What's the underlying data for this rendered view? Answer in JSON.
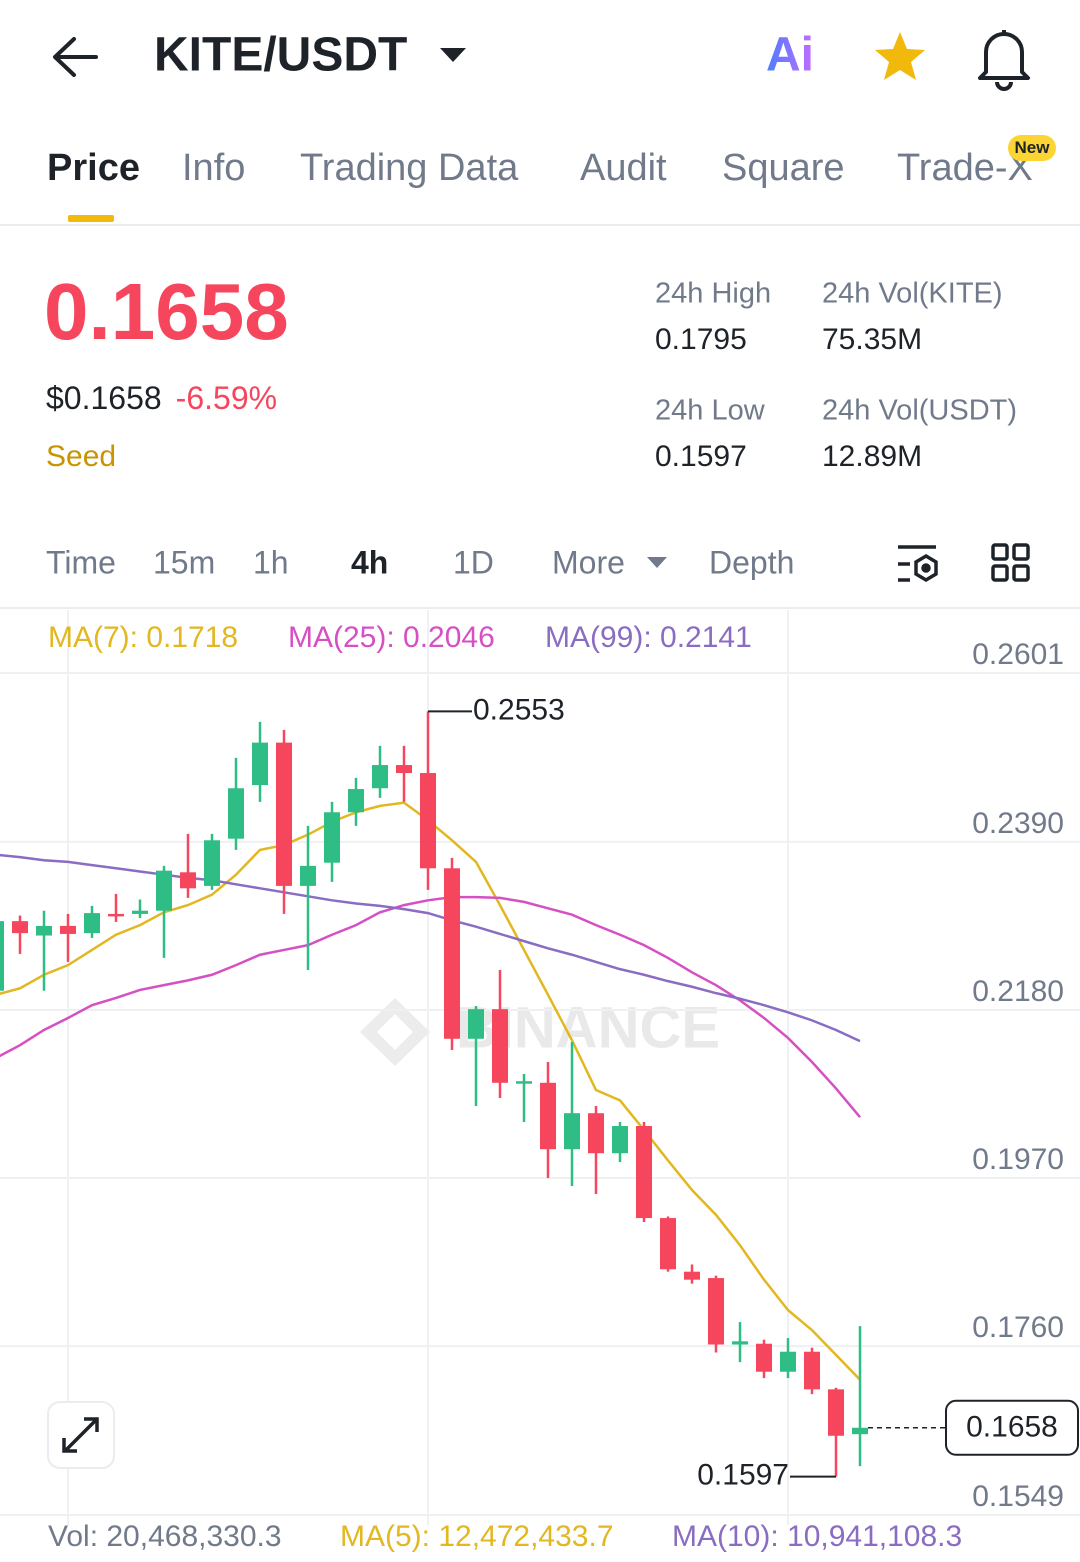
{
  "header": {
    "title": "KITE/USDT",
    "ai_label": "Ai"
  },
  "tabs": {
    "items": [
      "Price",
      "Info",
      "Trading Data",
      "Audit",
      "Square",
      "Trade-X"
    ],
    "badge": "New"
  },
  "ticker": {
    "price": "0.1658",
    "usd_price": "$0.1658",
    "change": "-6.59%",
    "tag": "Seed",
    "stats": [
      {
        "label": "24h High",
        "value": "0.1795"
      },
      {
        "label": "24h Vol(KITE)",
        "value": "75.35M"
      },
      {
        "label": "24h Low",
        "value": "0.1597"
      },
      {
        "label": "24h Vol(USDT)",
        "value": "12.89M"
      }
    ]
  },
  "intervals": [
    "Time",
    "15m",
    "1h",
    "4h",
    "1D",
    "More",
    "Depth"
  ],
  "chart_data": {
    "type": "candlestick",
    "watermark": "BINANCE",
    "up_color": "#2ebd85",
    "down_color": "#f6465d",
    "grid": true,
    "ylim": [
      0.1549,
      0.2601
    ],
    "yticks": [
      0.2601,
      {
        "value": 0.239,
        "label": "0.2390"
      },
      {
        "value": 0.218,
        "label": "0.2180"
      },
      {
        "value": 0.197,
        "label": "0.1970"
      },
      {
        "value": 0.176,
        "label": "0.1760"
      },
      0.1549
    ],
    "high_marker": 0.2553,
    "low_marker": 0.1597,
    "last_price": 0.1658,
    "candles": [
      {
        "open": 0.2204,
        "high": 0.23,
        "low": 0.219,
        "close": 0.2291
      },
      {
        "open": 0.2291,
        "high": 0.2298,
        "low": 0.225,
        "close": 0.2276
      },
      {
        "open": 0.2273,
        "high": 0.2304,
        "low": 0.2204,
        "close": 0.2285
      },
      {
        "open": 0.2285,
        "high": 0.23,
        "low": 0.224,
        "close": 0.2275
      },
      {
        "open": 0.2276,
        "high": 0.231,
        "low": 0.227,
        "close": 0.2301
      },
      {
        "open": 0.23,
        "high": 0.2325,
        "low": 0.229,
        "close": 0.2298
      },
      {
        "open": 0.23,
        "high": 0.2318,
        "low": 0.2295,
        "close": 0.2304
      },
      {
        "open": 0.2304,
        "high": 0.236,
        "low": 0.2245,
        "close": 0.2354
      },
      {
        "open": 0.2352,
        "high": 0.24,
        "low": 0.232,
        "close": 0.2332
      },
      {
        "open": 0.2335,
        "high": 0.24,
        "low": 0.233,
        "close": 0.2392
      },
      {
        "open": 0.2394,
        "high": 0.2495,
        "low": 0.238,
        "close": 0.2457
      },
      {
        "open": 0.2461,
        "high": 0.254,
        "low": 0.244,
        "close": 0.2514
      },
      {
        "open": 0.2514,
        "high": 0.253,
        "low": 0.23,
        "close": 0.2335
      },
      {
        "open": 0.2335,
        "high": 0.241,
        "low": 0.223,
        "close": 0.236
      },
      {
        "open": 0.2364,
        "high": 0.244,
        "low": 0.234,
        "close": 0.2427
      },
      {
        "open": 0.2427,
        "high": 0.247,
        "low": 0.241,
        "close": 0.2456
      },
      {
        "open": 0.2457,
        "high": 0.251,
        "low": 0.2445,
        "close": 0.2486
      },
      {
        "open": 0.2486,
        "high": 0.251,
        "low": 0.244,
        "close": 0.2476
      },
      {
        "open": 0.2476,
        "high": 0.2553,
        "low": 0.233,
        "close": 0.2357
      },
      {
        "open": 0.2357,
        "high": 0.237,
        "low": 0.213,
        "close": 0.2144
      },
      {
        "open": 0.2144,
        "high": 0.2185,
        "low": 0.206,
        "close": 0.2181
      },
      {
        "open": 0.2181,
        "high": 0.223,
        "low": 0.207,
        "close": 0.2089
      },
      {
        "open": 0.2089,
        "high": 0.21,
        "low": 0.204,
        "close": 0.2091
      },
      {
        "open": 0.2089,
        "high": 0.2115,
        "low": 0.197,
        "close": 0.2006
      },
      {
        "open": 0.2006,
        "high": 0.214,
        "low": 0.196,
        "close": 0.2051
      },
      {
        "open": 0.2051,
        "high": 0.206,
        "low": 0.195,
        "close": 0.2001
      },
      {
        "open": 0.2001,
        "high": 0.204,
        "low": 0.199,
        "close": 0.2035
      },
      {
        "open": 0.2035,
        "high": 0.204,
        "low": 0.1915,
        "close": 0.192
      },
      {
        "open": 0.192,
        "high": 0.1922,
        "low": 0.1853,
        "close": 0.1856
      },
      {
        "open": 0.1853,
        "high": 0.1862,
        "low": 0.1838,
        "close": 0.1843
      },
      {
        "open": 0.1845,
        "high": 0.1848,
        "low": 0.1752,
        "close": 0.1762
      },
      {
        "open": 0.1762,
        "high": 0.179,
        "low": 0.174,
        "close": 0.1766
      },
      {
        "open": 0.1763,
        "high": 0.1768,
        "low": 0.172,
        "close": 0.1728
      },
      {
        "open": 0.1728,
        "high": 0.177,
        "low": 0.172,
        "close": 0.1753
      },
      {
        "open": 0.1753,
        "high": 0.1758,
        "low": 0.17,
        "close": 0.1706
      },
      {
        "open": 0.1706,
        "high": 0.1708,
        "low": 0.1597,
        "close": 0.1648
      },
      {
        "open": 0.165,
        "high": 0.1785,
        "low": 0.161,
        "close": 0.1658
      }
    ],
    "series": [
      {
        "name": "MA(7): 0.1718",
        "color": "#e2b720",
        "values": [
          0.2199,
          0.2207,
          0.2224,
          0.2236,
          0.2255,
          0.2274,
          0.2286,
          0.2302,
          0.2311,
          0.2324,
          0.2349,
          0.238,
          0.2386,
          0.2399,
          0.2415,
          0.2427,
          0.2435,
          0.2439,
          0.2417,
          0.2392,
          0.2365,
          0.2311,
          0.2255,
          0.2199,
          0.2142,
          0.208,
          0.2067,
          0.203,
          0.1992,
          0.1955,
          0.1924,
          0.1886,
          0.1843,
          0.1805,
          0.178,
          0.1749,
          0.1718
        ]
      },
      {
        "name": "MA(25): 0.2046",
        "color": "#d64fc3",
        "values": [
          0.212,
          0.2136,
          0.2155,
          0.217,
          0.2186,
          0.2195,
          0.2205,
          0.2211,
          0.2217,
          0.2224,
          0.2236,
          0.2249,
          0.2255,
          0.2261,
          0.2274,
          0.2286,
          0.2302,
          0.2311,
          0.2317,
          0.2321,
          0.2321,
          0.232,
          0.2315,
          0.2307,
          0.2299,
          0.2286,
          0.2274,
          0.2261,
          0.2245,
          0.2227,
          0.2211,
          0.2192,
          0.217,
          0.2145,
          0.2115,
          0.2082,
          0.2046
        ]
      },
      {
        "name": "MA(99): 0.2141",
        "color": "#8a6cc2",
        "values": [
          0.2374,
          0.2371,
          0.2367,
          0.2365,
          0.2361,
          0.2357,
          0.2353,
          0.2349,
          0.2345,
          0.2342,
          0.2337,
          0.2332,
          0.2327,
          0.2322,
          0.2317,
          0.2313,
          0.231,
          0.2306,
          0.2301,
          0.2292,
          0.2284,
          0.2275,
          0.2266,
          0.2257,
          0.2249,
          0.224,
          0.2231,
          0.2224,
          0.2216,
          0.2209,
          0.2201,
          0.2194,
          0.2186,
          0.2177,
          0.2167,
          0.2155,
          0.2141
        ]
      }
    ],
    "volume_legend": [
      "Vol: 20,468,330.3",
      "MA(5): 12,472,433.7",
      "MA(10): 10,941,108.3"
    ]
  }
}
